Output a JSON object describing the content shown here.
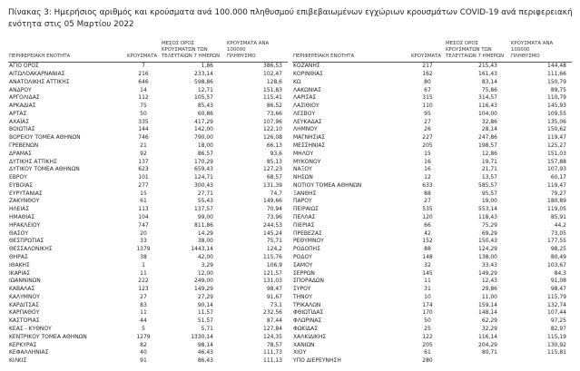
{
  "title": "Πίνακας 3: Ημερήσιος αριθμός και κρούσματα ανά 100.000 πληθυσμού επιβεβαιωμένων εγχώριων κρουσμάτων COVID-19 ανά περιφερειακή ενότητα στις 05 Μαρτίου 2022",
  "columns": {
    "region": "ΠΕΡΙΦΕΡΕΙΑΚΗ ΕΝΟΤΗΤΑ",
    "cases": "ΚΡΟΥΣΜΑΤΑ",
    "avg7": "ΜΕΣΟΣ ΟΡΟΣ\nΚΡΟΥΣΜΑΤΩΝ ΤΩΝ\nΤΕΛΕΥΤΑΙΩΝ 7 ΗΜΕΡΩΝ",
    "per100k": "ΚΡΟΥΣΜΑΤΑ ΑΝΑ 100000\nΠΛΗΘΥΣΜΟ"
  },
  "tables": [
    {
      "rows": [
        [
          "ΑΓΙΟ ΟΡΟΣ",
          "7",
          "1,86",
          "386,53"
        ],
        [
          "ΑΙΤΩΛΟΑΚΑΡΝΑΝΙΑΣ",
          "216",
          "233,14",
          "102,47"
        ],
        [
          "ΑΝΑΤΟΛΙΚΗΣ ΑΤΤΙΚΗΣ",
          "646",
          "598,86",
          "128,6"
        ],
        [
          "ΑΝΔΡΟΥ",
          "14",
          "12,71",
          "151,83"
        ],
        [
          "ΑΡΓΟΛΙΔΑΣ",
          "112",
          "105,57",
          "115,41"
        ],
        [
          "ΑΡΚΑΔΙΑΣ",
          "75",
          "85,43",
          "86,52"
        ],
        [
          "ΑΡΤΑΣ",
          "50",
          "60,86",
          "73,66"
        ],
        [
          "ΑΧΑΪΑΣ",
          "335",
          "417,29",
          "107,96"
        ],
        [
          "ΒΟΙΩΤΙΑΣ",
          "144",
          "142,00",
          "122,10"
        ],
        [
          "ΒΟΡΕΙΟΥ ΤΟΜΕΑ ΑΘΗΝΩΝ",
          "746",
          "790,00",
          "126,08"
        ],
        [
          "ΓΡΕΒΕΝΩΝ",
          "21",
          "18,00",
          "66,13"
        ],
        [
          "ΔΡΑΜΑΣ",
          "92",
          "86,57",
          "93,6"
        ],
        [
          "ΔΥΤΙΚΗΣ ΑΤΤΙΚΗΣ",
          "137",
          "170,29",
          "85,13"
        ],
        [
          "ΔΥΤΙΚΟΥ ΤΟΜΕΑ ΑΘΗΝΩΝ",
          "623",
          "659,43",
          "127,23"
        ],
        [
          "ΕΒΡΟΥ",
          "101",
          "124,71",
          "68,57"
        ],
        [
          "ΕΥΒΟΙΑΣ",
          "277",
          "300,43",
          "131,39"
        ],
        [
          "ΕΥΡΥΤΑΝΙΑΣ",
          "15",
          "27,71",
          "74,7"
        ],
        [
          "ΖΑΚΥΝΘΟΥ",
          "61",
          "55,43",
          "149,66"
        ],
        [
          "ΗΛΕΙΑΣ",
          "113",
          "137,57",
          "70,94"
        ],
        [
          "ΗΜΑΘΙΑΣ",
          "104",
          "99,00",
          "73,96"
        ],
        [
          "ΗΡΑΚΛΕΙΟΥ",
          "747",
          "811,86",
          "244,53"
        ],
        [
          "ΘΑΣΟΥ",
          "20",
          "14,29",
          "145,24"
        ],
        [
          "ΘΕΣΠΡΩΤΙΑΣ",
          "33",
          "38,00",
          "75,71"
        ],
        [
          "ΘΕΣΣΑΛΟΝΙΚΗΣ",
          "1379",
          "1443,14",
          "124,2"
        ],
        [
          "ΘΗΡΑΣ",
          "38",
          "42,00",
          "115,76"
        ],
        [
          "ΙΘΑΚΗΣ",
          "1",
          "3,29",
          "106,9"
        ],
        [
          "ΙΚΑΡΙΑΣ",
          "11",
          "12,00",
          "121,57"
        ],
        [
          "ΙΩΑΝΝΙΝΩΝ",
          "222",
          "249,00",
          "131,03"
        ],
        [
          "ΚΑΒΑΛΑΣ",
          "123",
          "149,29",
          "98,47"
        ],
        [
          "ΚΑΛΥΜΝΟΥ",
          "27",
          "27,29",
          "91,67"
        ],
        [
          "ΚΑΡΔΙΤΣΑΣ",
          "83",
          "90,14",
          "73,1"
        ],
        [
          "ΚΑΡΠΑΘΟΥ",
          "11",
          "11,57",
          "232,56"
        ],
        [
          "ΚΑΣΤΟΡΙΑΣ",
          "44",
          "51,57",
          "87,44"
        ],
        [
          "ΚΕΑΣ - ΚΥΘΝΟΥ",
          "5",
          "5,71",
          "127,84"
        ],
        [
          "ΚΕΝΤΡΙΚΟΥ ΤΟΜΕΑ ΑΘΗΝΩΝ",
          "1279",
          "1330,14",
          "124,35"
        ],
        [
          "ΚΕΡΚΥΡΑΣ",
          "82",
          "98,14",
          "78,57"
        ],
        [
          "ΚΕΦΑΛΛΗΝΙΑΣ",
          "40",
          "46,43",
          "111,73"
        ],
        [
          "ΚΙΛΚΙΣ",
          "91",
          "86,43",
          "111,13"
        ]
      ]
    },
    {
      "rows": [
        [
          "ΚΟΖΑΝΗΣ",
          "217",
          "215,43",
          "144,48"
        ],
        [
          "ΚΟΡΙΝΘΙΑΣ",
          "162",
          "161,43",
          "111,66"
        ],
        [
          "ΚΩ",
          "80",
          "83,14",
          "150,79"
        ],
        [
          "ΛΑΚΩΝΙΑΣ",
          "67",
          "75,86",
          "89,75"
        ],
        [
          "ΛΑΡΙΣΑΣ",
          "315",
          "314,57",
          "110,79"
        ],
        [
          "ΛΑΣΙΘΙΟΥ",
          "110",
          "116,43",
          "145,93"
        ],
        [
          "ΛΕΣΒΟΥ",
          "95",
          "104,00",
          "109,55"
        ],
        [
          "ΛΕΥΚΑΔΑΣ",
          "27",
          "32,86",
          "135,06"
        ],
        [
          "ΛΗΜΝΟΥ",
          "26",
          "28,14",
          "150,62"
        ],
        [
          "ΜΑΓΝΗΣΙΑΣ",
          "227",
          "247,86",
          "119,47"
        ],
        [
          "ΜΕΣΣΗΝΙΑΣ",
          "205",
          "198,57",
          "125,27"
        ],
        [
          "ΜΗΛΟΥ",
          "15",
          "12,86",
          "151,03"
        ],
        [
          "ΜΥΚΟΝΟΥ",
          "16",
          "19,71",
          "157,88"
        ],
        [
          "ΝΑΞΟΥ",
          "16",
          "21,71",
          "107,93"
        ],
        [
          "ΝΗΣΩΝ",
          "12",
          "13,57",
          "60,17"
        ],
        [
          "ΝΟΤΙΟΥ ΤΟΜΕΑ ΑΘΗΝΩΝ",
          "633",
          "585,57",
          "119,47"
        ],
        [
          "ΞΑΝΘΗΣ",
          "88",
          "95,57",
          "79,27"
        ],
        [
          "ΠΑΡΟΥ",
          "27",
          "19,00",
          "180,89"
        ],
        [
          "ΠΕΙΡΑΙΩΣ",
          "535",
          "553,14",
          "119,05"
        ],
        [
          "ΠΕΛΛΑΣ",
          "120",
          "118,43",
          "85,91"
        ],
        [
          "ΠΙΕΡΙΑΣ",
          "66",
          "75,29",
          "44,2"
        ],
        [
          "ΠΡΕΒΕΖΑΣ",
          "42",
          "69,29",
          "73,05"
        ],
        [
          "ΡΕΘΥΜΝΟΥ",
          "152",
          "150,43",
          "177,55"
        ],
        [
          "ΡΟΔΟΠΗΣ",
          "88",
          "124,29",
          "98,25"
        ],
        [
          "ΡΟΔΟΥ",
          "148",
          "138,00",
          "80,49"
        ],
        [
          "ΣΑΜΟΥ",
          "32",
          "33,43",
          "103,67"
        ],
        [
          "ΣΕΡΡΩΝ",
          "145",
          "149,29",
          "84,3"
        ],
        [
          "ΣΠΟΡΑΔΩΝ",
          "11",
          "12,43",
          "91,08"
        ],
        [
          "ΣΥΡΟΥ",
          "31",
          "29,86",
          "98,47"
        ],
        [
          "ΤΗΝΟΥ",
          "10",
          "11,00",
          "115,79"
        ],
        [
          "ΤΡΙΚΑΛΩΝ",
          "174",
          "159,14",
          "132,74"
        ],
        [
          "ΦΘΙΩΤΙΔΑΣ",
          "170",
          "148,14",
          "107,44"
        ],
        [
          "ΦΛΩΡΙΝΑΣ",
          "50",
          "62,29",
          "97,25"
        ],
        [
          "ΦΩΚΙΔΑΣ",
          "25",
          "32,29",
          "82,97"
        ],
        [
          "ΧΑΛΚΙΔΙΚΗΣ",
          "122",
          "116,14",
          "115,19"
        ],
        [
          "ΧΑΝΙΩΝ",
          "205",
          "204,29",
          "130,92"
        ],
        [
          "ΧΙΟΥ",
          "61",
          "80,71",
          "115,81"
        ],
        [
          "ΥΠΟ ΔΙΕΡΕΥΝΗΣΗ",
          "280",
          "",
          ""
        ]
      ]
    }
  ]
}
